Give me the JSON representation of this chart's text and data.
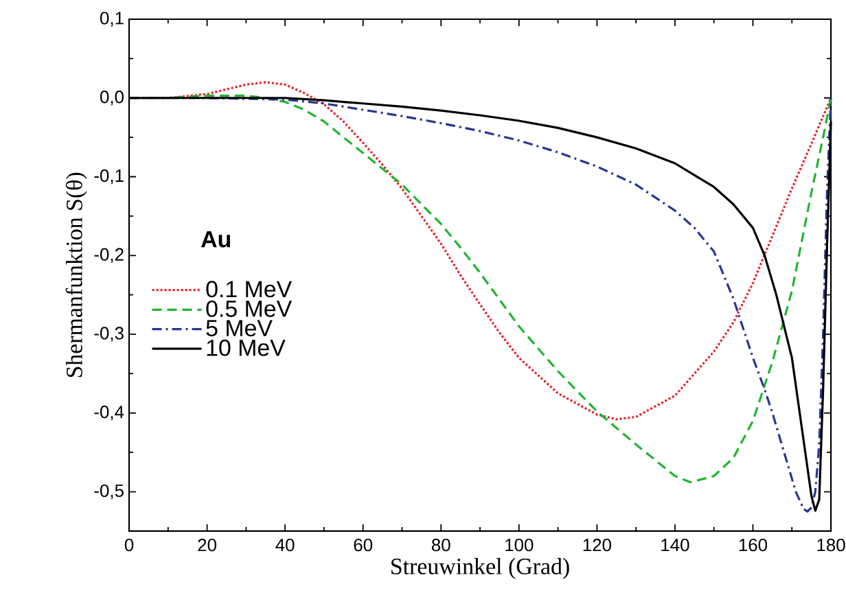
{
  "chart_data": {
    "type": "line",
    "xlabel": "Streuwinkel (Grad)",
    "ylabel": "Shermanfunktion S(θ)",
    "legend_title": "Au",
    "legend": "left",
    "marker": "none",
    "xlim": [
      0,
      180
    ],
    "ylim": [
      -0.55,
      0.1
    ],
    "xticks": [
      0,
      20,
      40,
      60,
      80,
      100,
      120,
      140,
      160,
      180
    ],
    "yticks": [
      {
        "value": 0.1,
        "label": "0,1"
      },
      {
        "value": 0,
        "label": "0,0"
      },
      {
        "value": -0.1,
        "label": "-0,1"
      },
      {
        "value": -0.2,
        "label": "-0,2"
      },
      {
        "value": -0.3,
        "label": "-0,3"
      },
      {
        "value": -0.4,
        "label": "-0,4"
      },
      {
        "value": -0.5,
        "label": "-0,5"
      }
    ],
    "series": [
      {
        "name": "0.1 MeV",
        "color": "#ee1c25",
        "line_style": "dotted",
        "x": [
          0,
          10,
          20,
          30,
          35,
          40,
          45,
          50,
          55,
          60,
          65,
          70,
          75,
          80,
          85,
          90,
          95,
          100,
          110,
          120,
          125,
          130,
          140,
          150,
          155,
          160,
          165,
          170,
          175,
          180
        ],
        "values": [
          0,
          0,
          0.005,
          0.017,
          0.02,
          0.017,
          0.006,
          -0.008,
          -0.03,
          -0.057,
          -0.085,
          -0.115,
          -0.15,
          -0.185,
          -0.225,
          -0.262,
          -0.298,
          -0.33,
          -0.375,
          -0.402,
          -0.408,
          -0.405,
          -0.378,
          -0.322,
          -0.285,
          -0.235,
          -0.175,
          -0.115,
          -0.058,
          0
        ]
      },
      {
        "name": "0.5 MeV",
        "color": "#22b531",
        "line_style": "dashed",
        "x": [
          0,
          10,
          20,
          30,
          35,
          40,
          45,
          50,
          55,
          60,
          65,
          70,
          75,
          80,
          85,
          90,
          100,
          110,
          120,
          130,
          140,
          144,
          150,
          155,
          160,
          165,
          170,
          175,
          178,
          180
        ],
        "values": [
          0,
          0,
          0.003,
          0.003,
          0,
          -0.005,
          -0.015,
          -0.03,
          -0.05,
          -0.07,
          -0.09,
          -0.11,
          -0.135,
          -0.16,
          -0.19,
          -0.222,
          -0.29,
          -0.347,
          -0.398,
          -0.44,
          -0.48,
          -0.488,
          -0.48,
          -0.457,
          -0.41,
          -0.335,
          -0.245,
          -0.12,
          -0.05,
          0
        ]
      },
      {
        "name": "5 MeV",
        "color": "#2a3593",
        "line_style": "dashdot",
        "x": [
          0,
          20,
          40,
          50,
          60,
          70,
          80,
          90,
          100,
          110,
          120,
          130,
          140,
          145,
          150,
          155,
          160,
          163,
          165,
          168,
          171,
          173,
          174,
          175,
          176,
          177,
          178,
          179,
          180
        ],
        "values": [
          0,
          0,
          -0.002,
          -0.007,
          -0.015,
          -0.023,
          -0.032,
          -0.042,
          -0.054,
          -0.069,
          -0.087,
          -0.11,
          -0.143,
          -0.165,
          -0.195,
          -0.255,
          -0.33,
          -0.37,
          -0.4,
          -0.45,
          -0.5,
          -0.522,
          -0.525,
          -0.52,
          -0.5,
          -0.44,
          -0.3,
          -0.12,
          0
        ]
      },
      {
        "name": "10 MeV",
        "color": "#000000",
        "line_style": "solid",
        "x": [
          0,
          40,
          50,
          60,
          70,
          80,
          90,
          100,
          110,
          120,
          130,
          140,
          150,
          155,
          160,
          163,
          166,
          168,
          170,
          172,
          174,
          175,
          176,
          177,
          178,
          179,
          180
        ],
        "values": [
          0,
          0,
          -0.003,
          -0.007,
          -0.011,
          -0.016,
          -0.022,
          -0.029,
          -0.038,
          -0.05,
          -0.064,
          -0.083,
          -0.113,
          -0.135,
          -0.165,
          -0.2,
          -0.25,
          -0.29,
          -0.33,
          -0.4,
          -0.47,
          -0.505,
          -0.524,
          -0.51,
          -0.37,
          -0.19,
          -0.03
        ]
      }
    ]
  }
}
